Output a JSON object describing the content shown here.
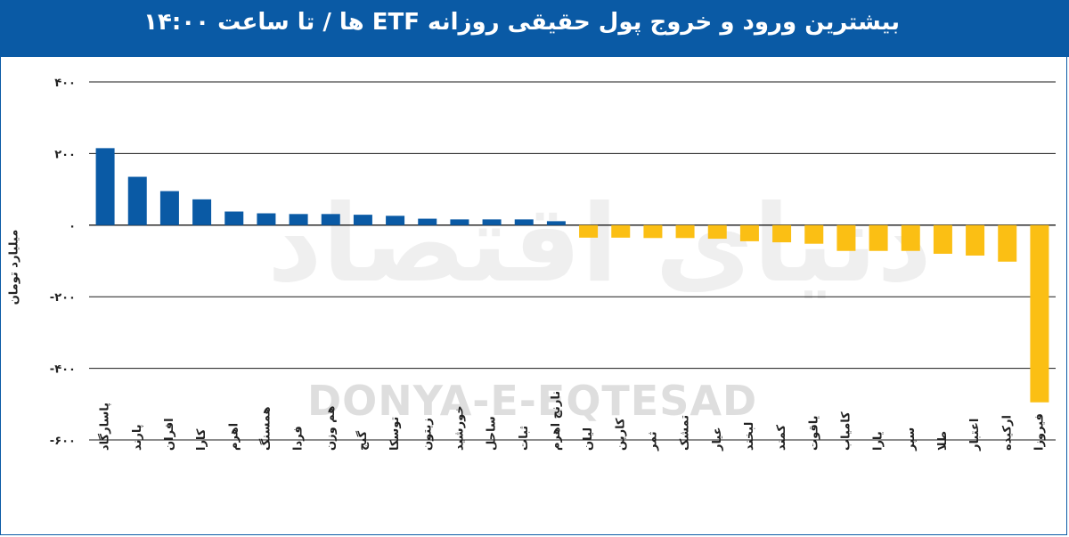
{
  "header": {
    "title": "بیشترین ورود و خروج پول حقیقی روزانه ETF ها / تا ساعت ۱۴:۰۰"
  },
  "watermark": {
    "logo_text": "دنیای اقتصاد",
    "brand_text": "DONYA-E-EQTESAD"
  },
  "colors": {
    "header_bg": "#0a5aa5",
    "positive_bar": "#0a5aa5",
    "negative_bar": "#fbbf14",
    "grid": "#1a1a1a"
  },
  "chart_data": {
    "type": "bar",
    "ylabel": "میلیارد تومان",
    "xlabel": "",
    "title": "",
    "ylim": [
      -600,
      400
    ],
    "yticks": [
      400,
      200,
      0,
      -200,
      -400,
      -600
    ],
    "ytick_labels": [
      "۴۰۰",
      "۲۰۰",
      "۰",
      "-۲۰۰",
      "-۴۰۰",
      "-۶۰۰"
    ],
    "grid": true,
    "categories": [
      "پاسارگاد",
      "پارند",
      "افران",
      "کارا",
      "اهرم",
      "همسنگ",
      "فردا",
      "هم وزن",
      "گنج",
      "توسکا",
      "زیتون",
      "خورشید",
      "ساحل",
      "ثبات",
      "نارنج اهرم",
      "لیان",
      "کارین",
      "ثمر",
      "تمشک",
      "عیار",
      "لبخند",
      "کمند",
      "یاقوت",
      "کامیاب",
      "یارا",
      "سپر",
      "طلا",
      "اعتبار",
      "ارکیده",
      "فیروزا"
    ],
    "values": [
      215,
      135,
      95,
      72,
      38,
      33,
      31,
      31,
      29,
      26,
      18,
      16,
      16,
      16,
      11,
      -35,
      -35,
      -36,
      -36,
      -38,
      -45,
      -48,
      -52,
      -72,
      -72,
      -72,
      -80,
      -85,
      -102,
      -495
    ]
  }
}
